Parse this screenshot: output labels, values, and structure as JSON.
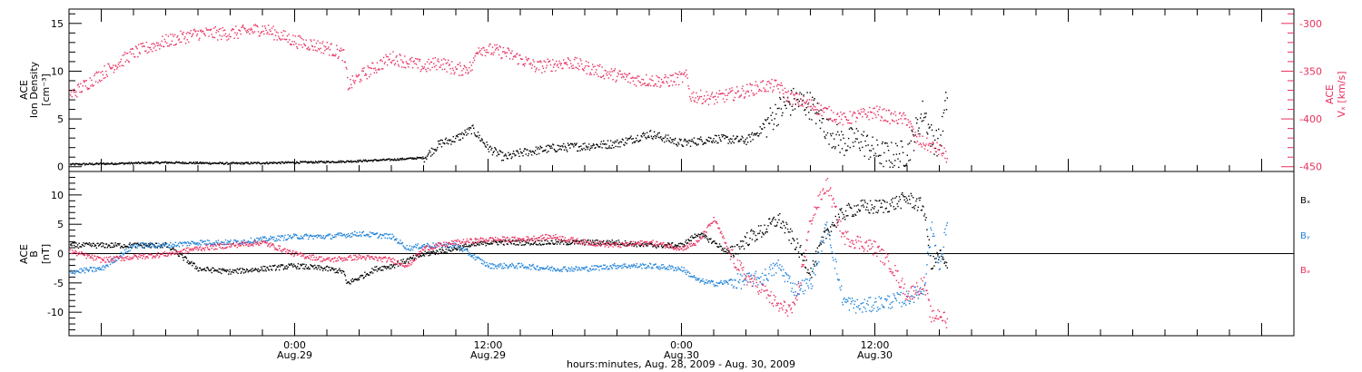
{
  "xaxis": {
    "label": "hours:minutes, Aug. 28, 2009 - Aug. 30, 2009",
    "range_hours": [
      -14,
      62
    ],
    "ticks": [
      {
        "hour": 0,
        "time": "0:00",
        "date": "Aug.29"
      },
      {
        "hour": 12,
        "time": "12:00",
        "date": "Aug.29"
      },
      {
        "hour": 24,
        "time": "0:00",
        "date": "Aug.30"
      },
      {
        "hour": 36,
        "time": "12:00",
        "date": "Aug.30"
      }
    ]
  },
  "colors": {
    "black": "#000000",
    "pink": "#e8305f",
    "blue": "#1f82d8"
  },
  "chart_data": [
    {
      "type": "scatter",
      "panel": "top",
      "left_axis_label": [
        "ACE",
        "Ion Density",
        "[cm⁻³]"
      ],
      "right_axis_label": [
        "ACE",
        "Vₓ [km/s]"
      ],
      "ylim_left": [
        -0.5,
        16.5
      ],
      "yticks_left": [
        0,
        5,
        10,
        15
      ],
      "ylim_right": [
        -455,
        -285
      ],
      "yticks_right": [
        -450,
        -400,
        -350,
        -300
      ],
      "density_knots": [
        [
          -14,
          0.3
        ],
        [
          -8,
          0.5
        ],
        [
          -4,
          0.4
        ],
        [
          0,
          0.5
        ],
        [
          3,
          0.6
        ],
        [
          6,
          0.8
        ],
        [
          8,
          1.0
        ],
        [
          9,
          2.5
        ],
        [
          10,
          3.0
        ],
        [
          11,
          4.0
        ],
        [
          12,
          2.0
        ],
        [
          13,
          1.0
        ],
        [
          14,
          1.5
        ],
        [
          16,
          2.0
        ],
        [
          18,
          2.2
        ],
        [
          20,
          2.5
        ],
        [
          22,
          3.5
        ],
        [
          24,
          2.5
        ],
        [
          26,
          3.0
        ],
        [
          28,
          2.8
        ],
        [
          29,
          4.0
        ],
        [
          30,
          6.0
        ],
        [
          31,
          7.0
        ],
        [
          32,
          6.5
        ],
        [
          33,
          4.0
        ],
        [
          34,
          2.5
        ],
        [
          35,
          3.0
        ],
        [
          36,
          1.5
        ],
        [
          37,
          1.2
        ],
        [
          38,
          1.5
        ],
        [
          39,
          6.0
        ],
        [
          39.5,
          3.0
        ],
        [
          40,
          2.5
        ],
        [
          40.5,
          8.0
        ]
      ],
      "speed_knots": [
        [
          -14,
          -375
        ],
        [
          -12,
          -352
        ],
        [
          -10,
          -330
        ],
        [
          -8,
          -318
        ],
        [
          -6,
          -310
        ],
        [
          -4,
          -310
        ],
        [
          -2,
          -305
        ],
        [
          0,
          -318
        ],
        [
          2,
          -325
        ],
        [
          3,
          -332
        ],
        [
          3.3,
          -365
        ],
        [
          4,
          -355
        ],
        [
          6,
          -335
        ],
        [
          7,
          -340
        ],
        [
          8,
          -345
        ],
        [
          9,
          -340
        ],
        [
          10,
          -348
        ],
        [
          11,
          -345
        ],
        [
          11.3,
          -325
        ],
        [
          13,
          -330
        ],
        [
          14,
          -337
        ],
        [
          15,
          -345
        ],
        [
          17,
          -340
        ],
        [
          19,
          -350
        ],
        [
          21,
          -358
        ],
        [
          23,
          -360
        ],
        [
          24.3,
          -355
        ],
        [
          24.5,
          -375
        ],
        [
          26,
          -378
        ],
        [
          28,
          -370
        ],
        [
          29,
          -365
        ],
        [
          30,
          -365
        ],
        [
          30.5,
          -375
        ],
        [
          32,
          -385
        ],
        [
          34,
          -400
        ],
        [
          36,
          -392
        ],
        [
          37,
          -398
        ],
        [
          38,
          -400
        ],
        [
          38.5,
          -420
        ],
        [
          39,
          -425
        ],
        [
          40,
          -432
        ],
        [
          40.5,
          -440
        ]
      ],
      "data_end_hour": 40.5
    },
    {
      "type": "scatter",
      "panel": "bottom",
      "left_axis_label": [
        "ACE",
        "B",
        "[nT]"
      ],
      "ylim": [
        -14,
        14
      ],
      "yticks": [
        -10,
        -5,
        0,
        5,
        10
      ],
      "series": [
        {
          "name": "Bₓ",
          "color": "#000000",
          "knots": [
            [
              -14,
              1.5
            ],
            [
              -10,
              1.5
            ],
            [
              -8,
              1.5
            ],
            [
              -6,
              -2.5
            ],
            [
              -4,
              -3.0
            ],
            [
              -2,
              -2.5
            ],
            [
              0,
              -2.0
            ],
            [
              2,
              -2.5
            ],
            [
              3,
              -3.0
            ],
            [
              3.2,
              -5.0
            ],
            [
              4,
              -4.0
            ],
            [
              5,
              -2.5
            ],
            [
              6,
              -2.0
            ],
            [
              8,
              0.0
            ],
            [
              10,
              1.0
            ],
            [
              12,
              2.0
            ],
            [
              14,
              2.0
            ],
            [
              16,
              2.0
            ],
            [
              18,
              2.0
            ],
            [
              20,
              2.0
            ],
            [
              22,
              1.5
            ],
            [
              24,
              1.5
            ],
            [
              25,
              3.5
            ],
            [
              26,
              2.0
            ],
            [
              27,
              0.0
            ],
            [
              28,
              2.5
            ],
            [
              29,
              4.0
            ],
            [
              30,
              6.0
            ],
            [
              31,
              2.0
            ],
            [
              32,
              -3.0
            ],
            [
              33,
              4.0
            ],
            [
              34,
              7.0
            ],
            [
              35,
              8.0
            ],
            [
              36,
              8.0
            ],
            [
              37,
              8.5
            ],
            [
              38,
              9.5
            ],
            [
              39,
              8.0
            ],
            [
              39.5,
              -2.0
            ],
            [
              40,
              0.0
            ],
            [
              40.5,
              -3.0
            ]
          ]
        },
        {
          "name": "Bᵧ",
          "color": "#1f82d8",
          "knots": [
            [
              -14,
              -3.0
            ],
            [
              -12,
              -2.5
            ],
            [
              -10,
              1.5
            ],
            [
              -8,
              1.5
            ],
            [
              -6,
              2.0
            ],
            [
              -4,
              2.0
            ],
            [
              -2,
              2.5
            ],
            [
              0,
              3.0
            ],
            [
              2,
              3.0
            ],
            [
              4,
              3.5
            ],
            [
              6,
              3.0
            ],
            [
              7,
              1.0
            ],
            [
              8,
              1.5
            ],
            [
              10,
              1.5
            ],
            [
              12,
              -2.0
            ],
            [
              14,
              -2.0
            ],
            [
              16,
              -2.5
            ],
            [
              18,
              -2.5
            ],
            [
              20,
              -2.0
            ],
            [
              22,
              -2.0
            ],
            [
              24,
              -2.5
            ],
            [
              25,
              -4.5
            ],
            [
              26,
              -5.0
            ],
            [
              28,
              -4.5
            ],
            [
              29,
              -4.0
            ],
            [
              30,
              -2.0
            ],
            [
              31,
              -6.0
            ],
            [
              32,
              -5.0
            ],
            [
              33,
              5.0
            ],
            [
              34,
              -8.0
            ],
            [
              35,
              -9.0
            ],
            [
              36,
              -8.5
            ],
            [
              37,
              -8.0
            ],
            [
              38,
              -7.5
            ],
            [
              39,
              -6.0
            ],
            [
              39.5,
              5.0
            ],
            [
              40,
              -3.0
            ],
            [
              40.5,
              7.0
            ]
          ]
        },
        {
          "name": "Bₔ",
          "color": "#e8305f",
          "knots": [
            [
              -14,
              0.5
            ],
            [
              -12,
              -1.0
            ],
            [
              -10,
              -0.5
            ],
            [
              -8,
              0.0
            ],
            [
              -6,
              1.0
            ],
            [
              -4,
              1.5
            ],
            [
              -2,
              2.0
            ],
            [
              0,
              0.0
            ],
            [
              2,
              -1.0
            ],
            [
              4,
              -0.5
            ],
            [
              6,
              -1.0
            ],
            [
              7,
              -2.0
            ],
            [
              8,
              1.0
            ],
            [
              10,
              2.0
            ],
            [
              12,
              2.5
            ],
            [
              14,
              2.5
            ],
            [
              16,
              3.0
            ],
            [
              18,
              2.0
            ],
            [
              20,
              1.5
            ],
            [
              22,
              2.0
            ],
            [
              24,
              1.0
            ],
            [
              25,
              2.0
            ],
            [
              26,
              6.0
            ],
            [
              27,
              0.0
            ],
            [
              28,
              -4.0
            ],
            [
              29,
              -6.0
            ],
            [
              30,
              -9.0
            ],
            [
              31,
              -9.5
            ],
            [
              32,
              6.0
            ],
            [
              33,
              12.0
            ],
            [
              34,
              3.0
            ],
            [
              35,
              2.0
            ],
            [
              36,
              1.0
            ],
            [
              37,
              -2.0
            ],
            [
              38,
              -7.0
            ],
            [
              39,
              -5.0
            ],
            [
              39.5,
              -11.0
            ],
            [
              40,
              -10.0
            ],
            [
              40.5,
              -12.0
            ]
          ]
        }
      ]
    }
  ]
}
